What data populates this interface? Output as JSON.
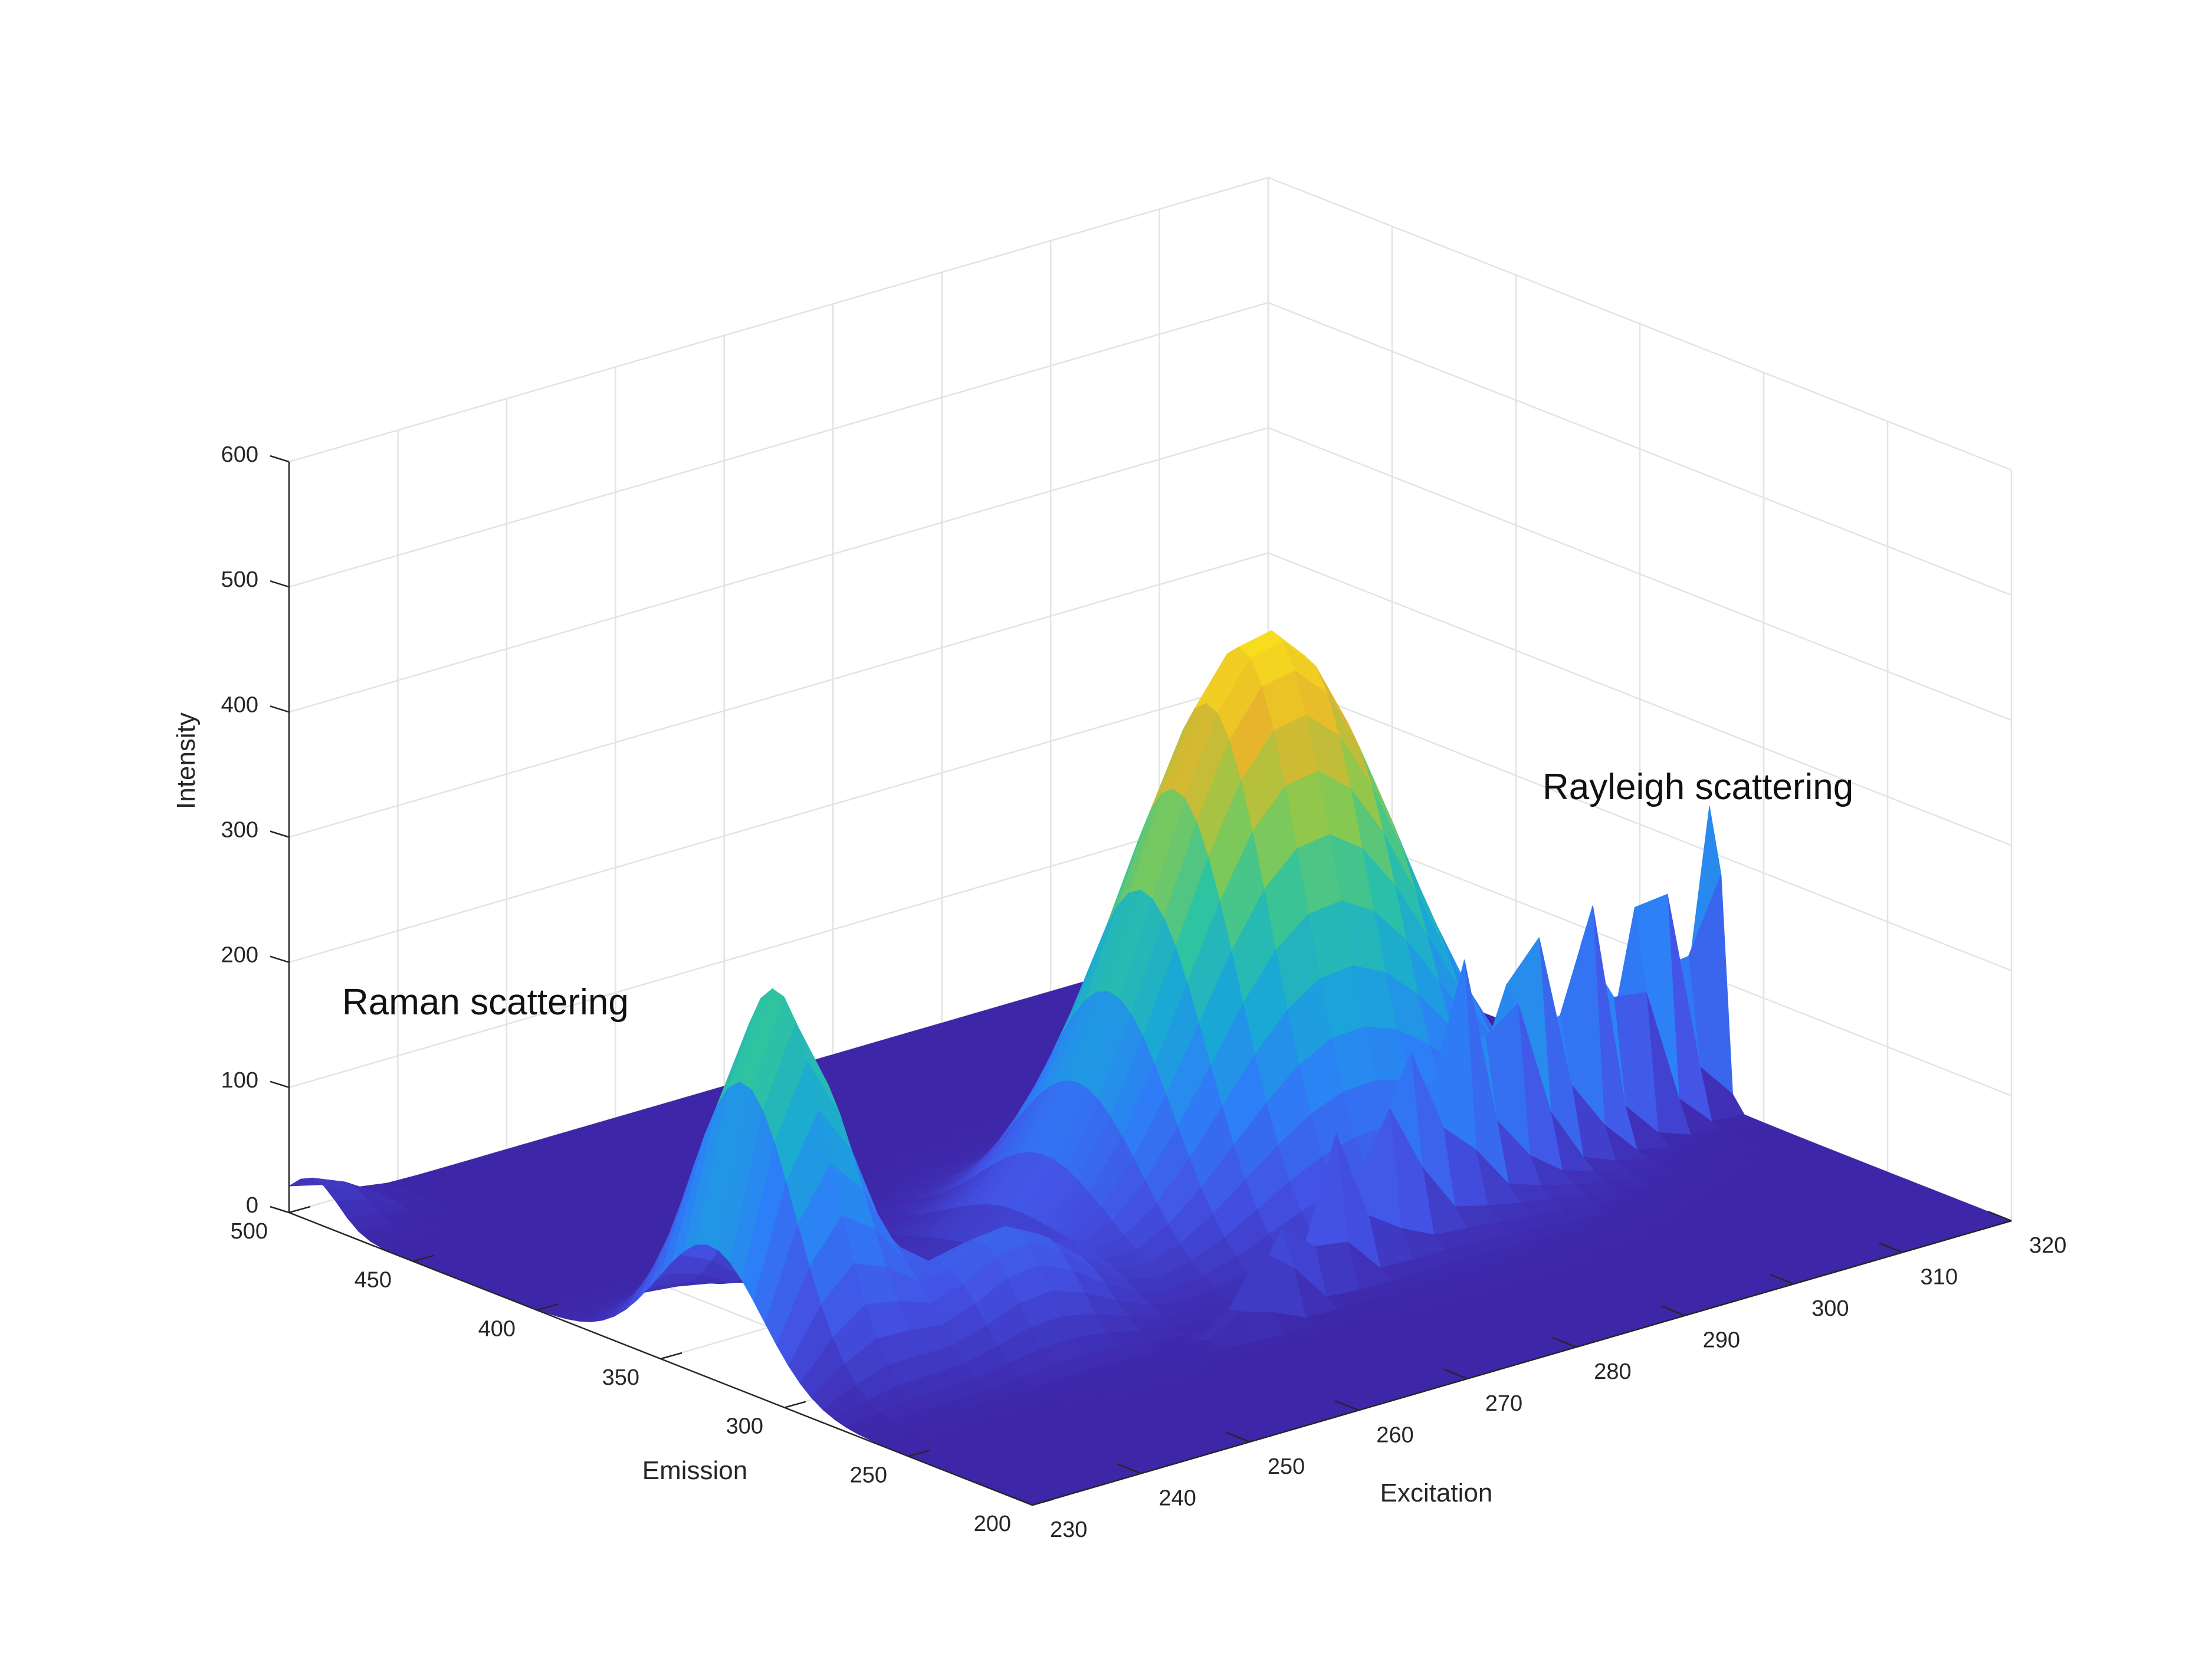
{
  "chart_data": {
    "type": "surface",
    "title": "",
    "xlabel": "Excitation",
    "ylabel": "Emission",
    "zlabel": "Intensity",
    "xlim": [
      230,
      320
    ],
    "ylim": [
      200,
      500
    ],
    "zlim": [
      0,
      600
    ],
    "x_ticks": [
      230,
      240,
      250,
      260,
      270,
      280,
      290,
      300,
      310,
      320
    ],
    "y_ticks": [
      200,
      250,
      300,
      350,
      400,
      450,
      500
    ],
    "z_ticks": [
      0,
      100,
      200,
      300,
      400,
      500,
      600
    ],
    "grid": true,
    "colormap": "parula",
    "colormap_stops": [
      "#3e26a8",
      "#4353e6",
      "#2d7ff7",
      "#19a8d6",
      "#2ec3a0",
      "#8ac94e",
      "#e6b52b",
      "#f9e21c"
    ],
    "annotations": [
      {
        "text": "Raman scattering"
      },
      {
        "text": "Rayleigh scattering"
      }
    ],
    "features": [
      {
        "name": "Raman scattering",
        "excitation": 230,
        "emission": 490,
        "intensity": 35
      },
      {
        "name": "fluorescence peak",
        "excitation_center": 283,
        "emission_center": 340,
        "intensity_max": 455
      },
      {
        "name": "secondary peak",
        "excitation_center": 236,
        "emission_center": 330,
        "intensity_max": 295
      },
      {
        "name": "Rayleigh scattering",
        "emission_equals_excitation": true,
        "intensity_max": 235
      }
    ]
  }
}
